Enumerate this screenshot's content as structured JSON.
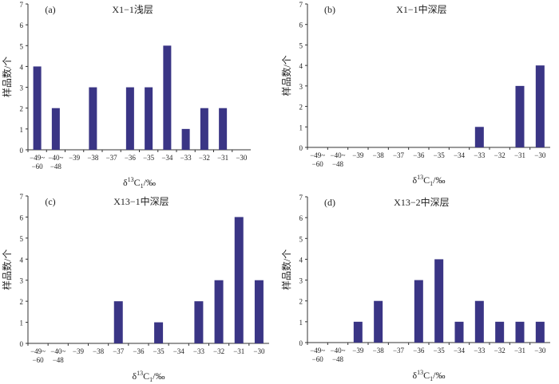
{
  "chart_data": [
    {
      "type": "bar",
      "panel_label": "(a)",
      "title": "X1−1浅层",
      "xlabel": "δ13C1/‰",
      "ylabel": "样品数/个",
      "categories": [
        "−49~−60",
        "−40~−48",
        "−39",
        "−38",
        "−37",
        "−36",
        "−35",
        "−34",
        "−33",
        "−32",
        "−31",
        "−30"
      ],
      "values": [
        4,
        2,
        0,
        3,
        0,
        3,
        3,
        5,
        1,
        2,
        2,
        0
      ],
      "ylim": [
        0,
        7
      ],
      "yticks": [
        0,
        1,
        2,
        3,
        4,
        5,
        6,
        7
      ],
      "bar_color": "#3a3585"
    },
    {
      "type": "bar",
      "panel_label": "(b)",
      "title": "X1−1中深层",
      "xlabel": "δ13C1/‰",
      "ylabel": "样品数/个",
      "categories": [
        "−49~−60",
        "−40~−48",
        "−39",
        "−38",
        "−37",
        "−36",
        "−35",
        "−34",
        "−33",
        "−32",
        "−31",
        "−30"
      ],
      "values": [
        0,
        0,
        0,
        0,
        0,
        0,
        0,
        0,
        1,
        0,
        3,
        4
      ],
      "ylim": [
        0,
        7
      ],
      "yticks": [
        0,
        1,
        2,
        3,
        4,
        5,
        6,
        7
      ],
      "bar_color": "#3a3585"
    },
    {
      "type": "bar",
      "panel_label": "(c)",
      "title": "X13−1中深层",
      "xlabel": "δ13C1/‰",
      "ylabel": "样品数/个",
      "categories": [
        "−49~−60",
        "−40~−48",
        "−39",
        "−38",
        "−37",
        "−36",
        "−35",
        "−34",
        "−33",
        "−32",
        "−31",
        "−30"
      ],
      "values": [
        0,
        0,
        0,
        0,
        2,
        0,
        1,
        0,
        2,
        3,
        6,
        3
      ],
      "ylim": [
        0,
        7
      ],
      "yticks": [
        0,
        1,
        2,
        3,
        4,
        5,
        6,
        7
      ],
      "bar_color": "#3a3585"
    },
    {
      "type": "bar",
      "panel_label": "(d)",
      "title": "X13−2中深层",
      "xlabel": "δ13C1/‰",
      "ylabel": "样品数/个",
      "categories": [
        "−49~−60",
        "−40~−48",
        "−39",
        "−38",
        "−37",
        "−36",
        "−35",
        "−34",
        "−33",
        "−32",
        "−31",
        "−30"
      ],
      "values": [
        0,
        0,
        1,
        2,
        0,
        3,
        4,
        1,
        2,
        1,
        1,
        1
      ],
      "ylim": [
        0,
        7
      ],
      "yticks": [
        0,
        1,
        2,
        3,
        4,
        5,
        6,
        7
      ],
      "bar_color": "#3a3585"
    }
  ]
}
